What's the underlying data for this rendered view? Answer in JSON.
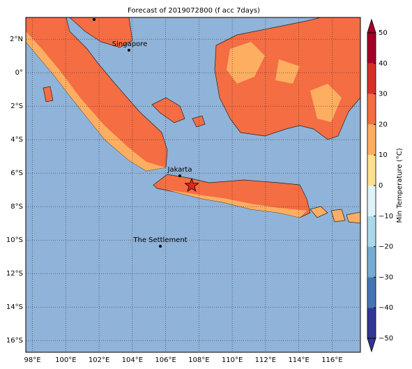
{
  "title": "Forecast of 2019072800 (f acc 7days)",
  "map": {
    "xlim": [
      97.6,
      117.7
    ],
    "ylim": [
      -16.7,
      3.3
    ],
    "xticks": [
      {
        "value": 98,
        "label": "98°E"
      },
      {
        "value": 100,
        "label": "100°E"
      },
      {
        "value": 102,
        "label": "102°E"
      },
      {
        "value": 104,
        "label": "104°E"
      },
      {
        "value": 106,
        "label": "106°E"
      },
      {
        "value": 108,
        "label": "108°E"
      },
      {
        "value": 110,
        "label": "110°E"
      },
      {
        "value": 112,
        "label": "112°E"
      },
      {
        "value": 114,
        "label": "114°E"
      },
      {
        "value": 116,
        "label": "116°E"
      }
    ],
    "yticks": [
      {
        "value": 2,
        "label": "2°N"
      },
      {
        "value": 0,
        "label": "0°"
      },
      {
        "value": -2,
        "label": "2°S"
      },
      {
        "value": -4,
        "label": "4°S"
      },
      {
        "value": -6,
        "label": "6°S"
      },
      {
        "value": -8,
        "label": "8°S"
      },
      {
        "value": -10,
        "label": "10°S"
      },
      {
        "value": -12,
        "label": "12°S"
      },
      {
        "value": -14,
        "label": "14°S"
      },
      {
        "value": -16,
        "label": "16°S"
      }
    ],
    "grid": true,
    "places": [
      "Singapore",
      "Jakarta",
      "The Settlement"
    ]
  },
  "colorbar": {
    "label": "Min Temperature (°C)",
    "lim": [
      -50,
      50
    ],
    "ticks": [
      {
        "value": -50,
        "label": "−50"
      },
      {
        "value": -40,
        "label": "−40"
      },
      {
        "value": -30,
        "label": "−30"
      },
      {
        "value": -20,
        "label": "−20"
      },
      {
        "value": -10,
        "label": "−10"
      },
      {
        "value": 0,
        "label": "0"
      },
      {
        "value": 10,
        "label": "10"
      },
      {
        "value": 20,
        "label": "20"
      },
      {
        "value": 30,
        "label": "30"
      },
      {
        "value": 40,
        "label": "40"
      },
      {
        "value": 50,
        "label": "50"
      }
    ],
    "colors": [
      "#313695",
      "#4575b4",
      "#74add1",
      "#abd9e9",
      "#e0f3f8",
      "#fee090",
      "#fdae61",
      "#f46d43",
      "#d73027",
      "#a50026"
    ]
  }
}
